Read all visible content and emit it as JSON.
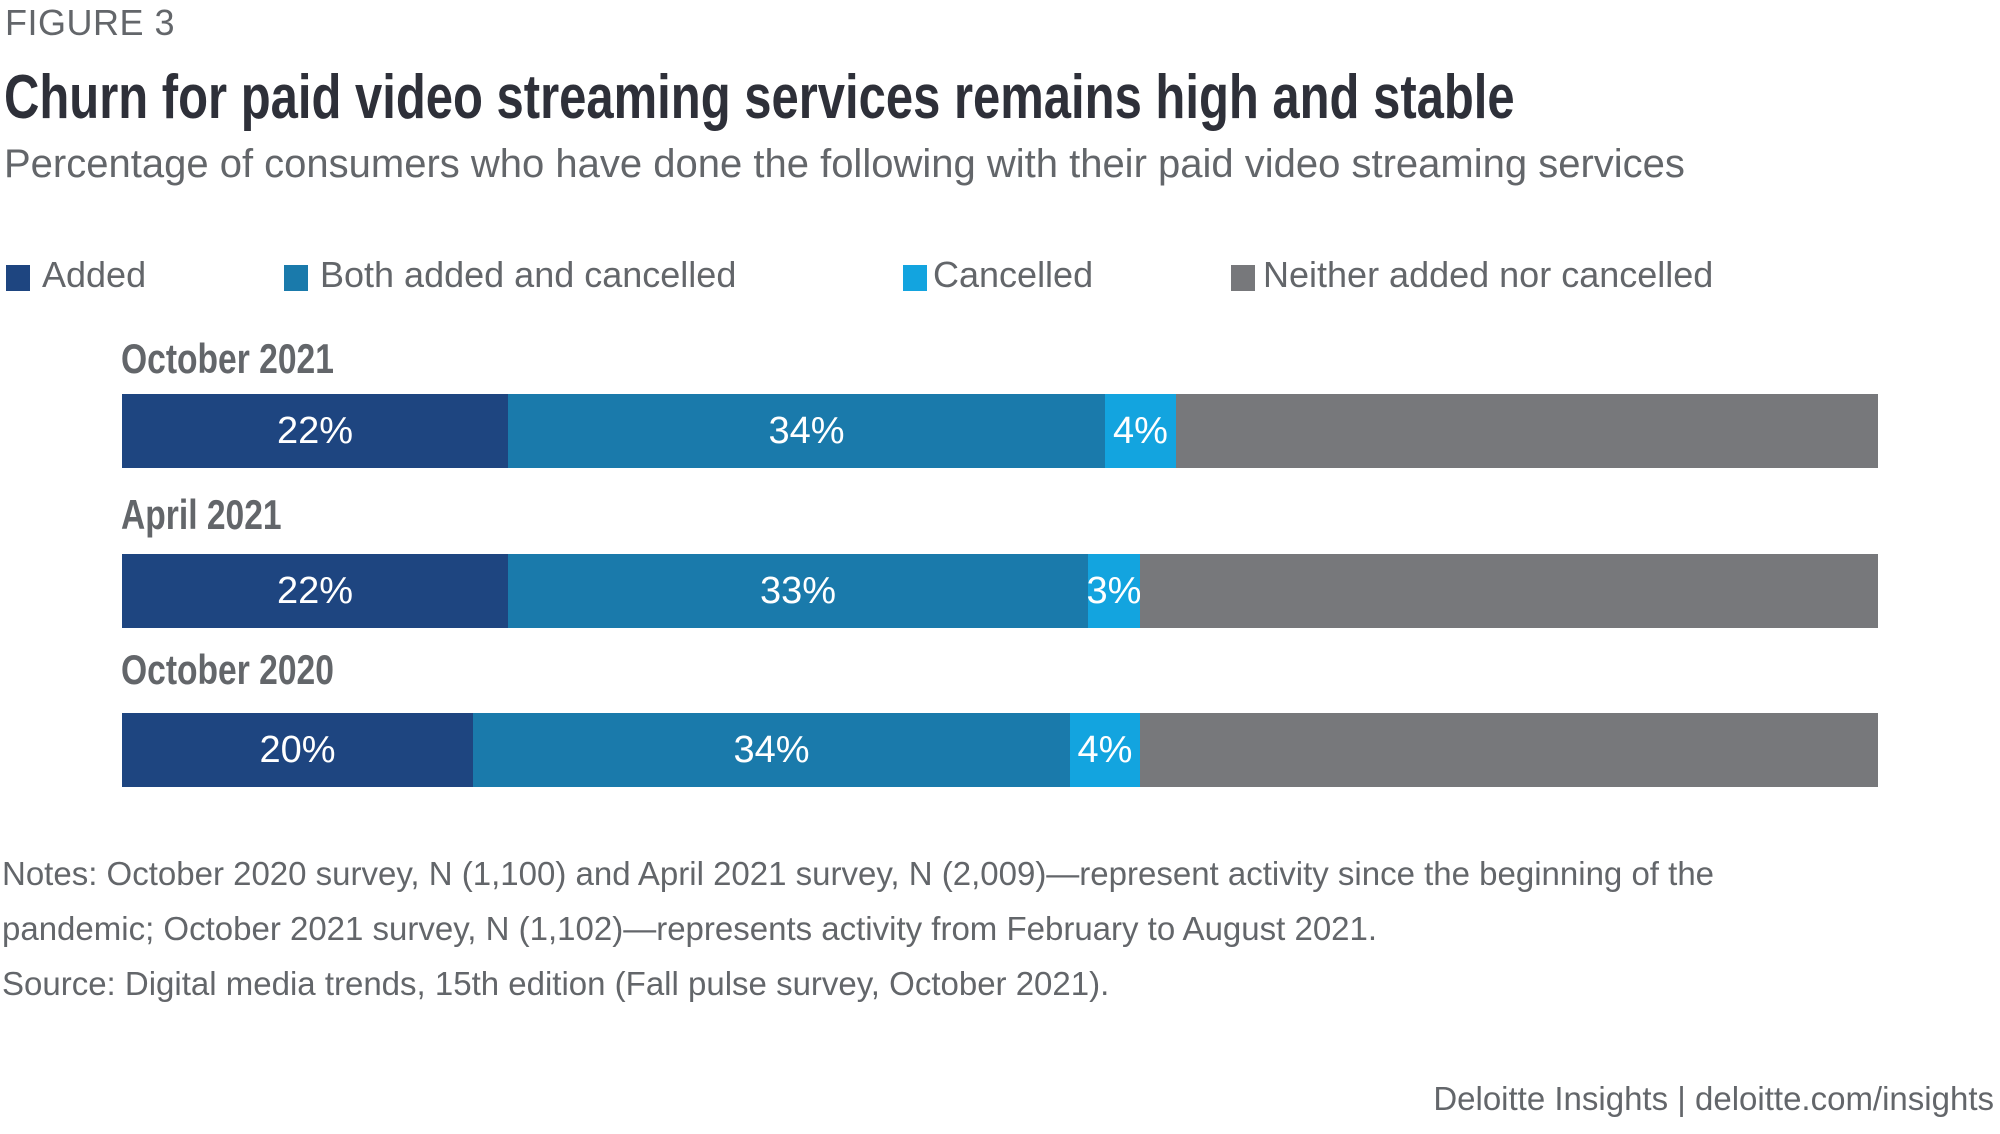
{
  "figure_label": "FIGURE 3",
  "title": "Churn for paid video streaming services remains high and stable",
  "subtitle": "Percentage of consumers who have done the following with their paid video streaming services",
  "legend": [
    {
      "label": "Added",
      "color": "#1e4580"
    },
    {
      "label": "Both added and cancelled",
      "color": "#1a7aab"
    },
    {
      "label": "Cancelled",
      "color": "#13a4df"
    },
    {
      "label": "Neither added nor cancelled",
      "color": "#77787b"
    }
  ],
  "notes": [
    "Notes: October 2020 survey, N (1,100) and April 2021 survey, N (2,009)—represent activity since the beginning of the",
    "pandemic; October 2021 survey, N (1,102)—represents activity from February to August 2021.",
    "Source: Digital media trends, 15th edition (Fall pulse survey, October 2021)."
  ],
  "footer": "Deloitte Insights | deloitte.com/insights",
  "chart_data": {
    "type": "bar",
    "orientation": "horizontal",
    "stacked": true,
    "title": "Churn for paid video streaming services remains high and stable",
    "subtitle": "Percentage of consumers who have done the following with their paid video streaming services",
    "categories": [
      "October 2021",
      "April 2021",
      "October 2020"
    ],
    "series": [
      {
        "name": "Added",
        "color": "#1e4580",
        "values": [
          22,
          22,
          20
        ],
        "labels": [
          "22%",
          "22%",
          "20%"
        ]
      },
      {
        "name": "Both added and cancelled",
        "color": "#1a7aab",
        "values": [
          34,
          33,
          34
        ],
        "labels": [
          "34%",
          "33%",
          "34%"
        ]
      },
      {
        "name": "Cancelled",
        "color": "#13a4df",
        "values": [
          4,
          3,
          4
        ],
        "labels": [
          "4%",
          "3%",
          "4%"
        ]
      },
      {
        "name": "Neither added nor cancelled",
        "color": "#77787b",
        "values": [
          40,
          42,
          42
        ],
        "labels": [
          "",
          "",
          ""
        ]
      }
    ],
    "xlim": [
      0,
      100
    ],
    "unit": "%",
    "legend_position": "top",
    "grid": false
  }
}
